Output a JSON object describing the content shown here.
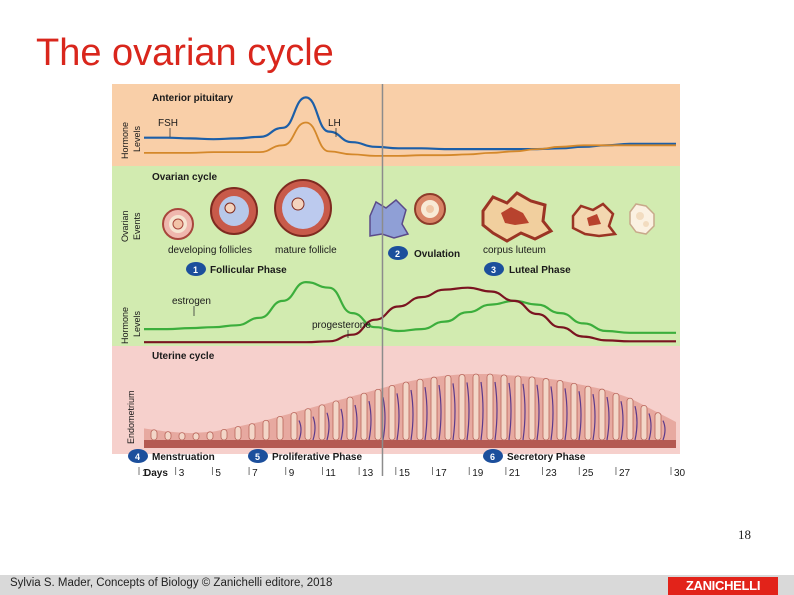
{
  "slide": {
    "title": "The ovarian cycle",
    "page_number": "18",
    "credit": "Sylvia S. Mader, Concepts of Biology © Zanichelli editore, 2018",
    "publisher_logo": "ZANICHELLI"
  },
  "figure": {
    "anterior_pituitary": {
      "heading": "Anterior pituitary",
      "axis_label_line1": "Hormone",
      "axis_label_line2": "Levels",
      "fsh_label": "FSH",
      "lh_label": "LH"
    },
    "ovarian_cycle": {
      "heading": "Ovarian cycle",
      "axis_label_line1": "Ovarian",
      "axis_label_line2": "Events",
      "developing_follicles": "developing follicles",
      "mature_follicle": "mature follicle",
      "corpus_luteum": "corpus luteum"
    },
    "phases": {
      "p1_number": "1",
      "p1_label": "Follicular Phase",
      "p2_number": "2",
      "p2_label": "Ovulation",
      "p3_number": "3",
      "p3_label": "Luteal Phase",
      "p4_number": "4",
      "p4_label": "Menstruation",
      "p5_number": "5",
      "p5_label": "Proliferative Phase",
      "p6_number": "6",
      "p6_label": "Secretory Phase"
    },
    "ovarian_hormones": {
      "axis_label_line1": "Hormone",
      "axis_label_line2": "Levels",
      "estrogen_label": "estrogen",
      "progesterone_label": "progesterone"
    },
    "uterine_cycle": {
      "heading": "Uterine cycle",
      "axis_label": "Endometrium"
    },
    "days": {
      "label": "Days",
      "ticks": [
        "1",
        "3",
        "5",
        "7",
        "9",
        "11",
        "13",
        "15",
        "17",
        "19",
        "21",
        "23",
        "25",
        "27",
        "30"
      ]
    },
    "colors": {
      "pituitary_band": "#f9cfa8",
      "ovarian_band": "#d2ebb0",
      "uterine_band": "#f6d0cc",
      "fsh_curve": "#1c5fa8",
      "lh_curve": "#d4882a",
      "estrogen_curve": "#3cae3c",
      "progesterone_curve": "#7a1420",
      "ovulation_line": "#8c8c8c",
      "phase_badge": "#1c4f9c"
    },
    "curves": {
      "x_range": [
        1,
        30
      ],
      "fsh_levels": [
        0.32,
        0.32,
        0.31,
        0.3,
        0.31,
        0.33,
        0.45,
        0.85,
        0.4,
        0.26,
        0.2,
        0.18,
        0.18,
        0.17,
        0.17,
        0.17,
        0.17,
        0.17,
        0.18,
        0.2,
        0.22,
        0.24,
        0.24,
        0.24
      ],
      "lh_levels": [
        0.12,
        0.12,
        0.12,
        0.13,
        0.13,
        0.13,
        0.22,
        0.52,
        0.14,
        0.1,
        0.08,
        0.08,
        0.09,
        0.09,
        0.1,
        0.12,
        0.14,
        0.17,
        0.2,
        0.22,
        0.22,
        0.22,
        0.22,
        0.22
      ],
      "estrogen_levels": [
        0.18,
        0.18,
        0.19,
        0.2,
        0.22,
        0.3,
        0.48,
        0.68,
        0.62,
        0.35,
        0.2,
        0.16,
        0.18,
        0.26,
        0.36,
        0.44,
        0.48,
        0.44,
        0.35,
        0.24,
        0.16,
        0.14,
        0.14,
        0.14
      ],
      "progesterone_levels": [
        0.04,
        0.04,
        0.04,
        0.04,
        0.04,
        0.04,
        0.04,
        0.04,
        0.05,
        0.12,
        0.28,
        0.42,
        0.52,
        0.6,
        0.62,
        0.58,
        0.48,
        0.34,
        0.2,
        0.1,
        0.06,
        0.05,
        0.05,
        0.05
      ],
      "endometrium_thickness": [
        0.22,
        0.18,
        0.16,
        0.18,
        0.24,
        0.3,
        0.38,
        0.46,
        0.54,
        0.62,
        0.7,
        0.78,
        0.84,
        0.88,
        0.9,
        0.9,
        0.88,
        0.86,
        0.82,
        0.76,
        0.7,
        0.6,
        0.45,
        0.3
      ]
    }
  }
}
